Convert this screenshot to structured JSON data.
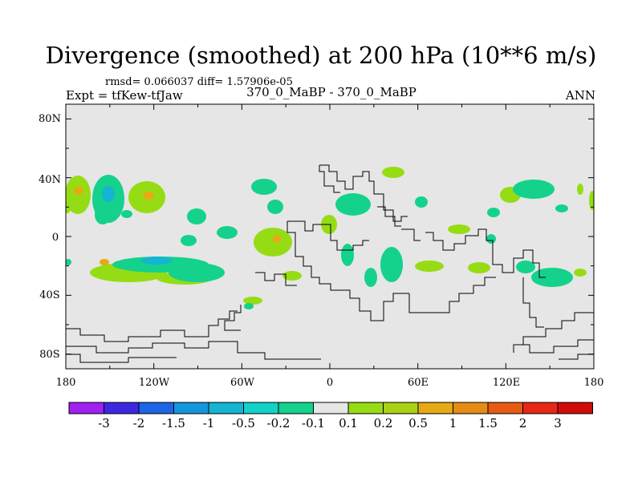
{
  "title": "Divergence (smoothed) at 200 hPa (10**6 m/s)",
  "stats": "rmsd= 0.066037 diff= 1.57906e-05",
  "expt": "Expt = tfKew-tfJaw",
  "case": "370_0_MaBP - 370_0_MaBP",
  "season": "ANN",
  "lat_labels": [
    "80N",
    "40N",
    "0",
    "40S",
    "80S"
  ],
  "lon_labels": [
    "180",
    "120W",
    "60W",
    "0",
    "60E",
    "120E",
    "180"
  ],
  "colorbar": {
    "labels": [
      "-3",
      "-2",
      "-1.5",
      "-1",
      "-0.5",
      "-0.2",
      "-0.1",
      "0.1",
      "0.2",
      "0.5",
      "1",
      "1.5",
      "2",
      "3"
    ],
    "colors": [
      "#a020f0",
      "#3c28e0",
      "#1e64e6",
      "#1496dc",
      "#14b4d2",
      "#14d2c8",
      "#14d28c",
      "#e6e6e6",
      "#96dc14",
      "#aad214",
      "#e6aa14",
      "#e68c14",
      "#e65a14",
      "#e62814",
      "#d20a0a"
    ]
  },
  "colors": {
    "background": "#e6e6e6",
    "pos1": "#96dc14",
    "pos2": "#e6aa14",
    "neg1": "#14d28c",
    "neg2": "#14b4d2"
  }
}
